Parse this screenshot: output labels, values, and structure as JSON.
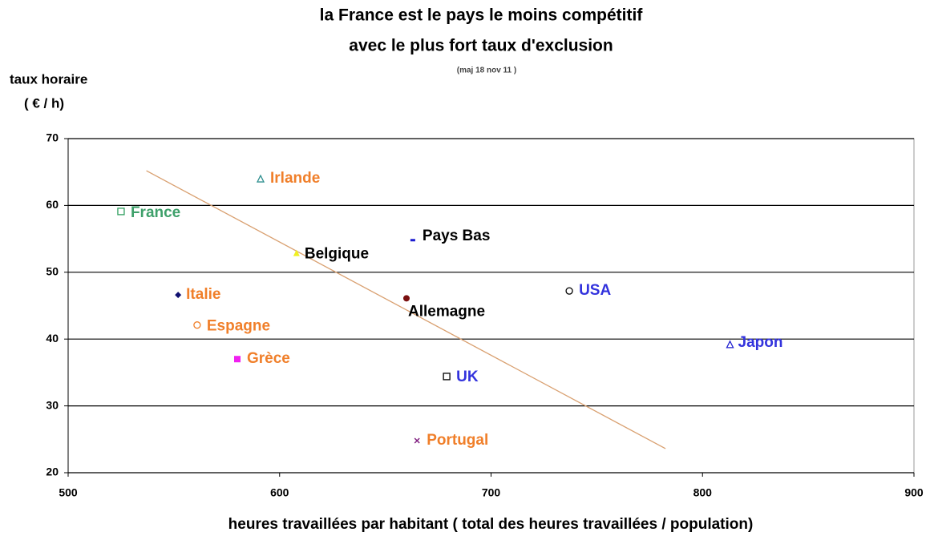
{
  "chart_data": {
    "type": "scatter",
    "title": [
      "la France est le pays le moins compétitif",
      "avec  le plus fort taux d'exclusion"
    ],
    "subtitle": "(maj 18 nov 11 )",
    "y_label": [
      "taux horaire",
      "( € / h)"
    ],
    "x_label": "heures travaillées par habitant ( total des heures travaillées / population)",
    "xlim": [
      500,
      900
    ],
    "xticks": [
      500,
      600,
      700,
      800,
      900
    ],
    "ylim": [
      20,
      70
    ],
    "yticks": [
      20,
      30,
      40,
      50,
      60,
      70
    ],
    "grid": true,
    "points": [
      {
        "name": "Irlande",
        "x": 591,
        "y": 64,
        "color": "#2f8f8f",
        "marker": "triangle-open",
        "label_color": "#f07f2a"
      },
      {
        "name": "France",
        "x": 525,
        "y": 59.1,
        "color": "#2e9e5e",
        "marker": "square-open",
        "label_color": "#3ea06a"
      },
      {
        "name": "Pays Bas",
        "x": 663,
        "y": 54.8,
        "color": "#1a1ad0",
        "marker": "dash",
        "label_color": "#000000"
      },
      {
        "name": "Belgique",
        "x": 608,
        "y": 52.9,
        "color": "#f0f020",
        "marker": "triangle",
        "label_color": "#000000"
      },
      {
        "name": "Italie",
        "x": 552,
        "y": 46.6,
        "color": "#101070",
        "marker": "diamond",
        "label_color": "#f07f2a"
      },
      {
        "name": "Allemagne",
        "x": 660,
        "y": 46.1,
        "color": "#7a1010",
        "marker": "circle",
        "label_color": "#000000"
      },
      {
        "name": "USA",
        "x": 737,
        "y": 47.2,
        "color": "#000000",
        "marker": "circle-open",
        "label_color": "#3333dd"
      },
      {
        "name": "Espagne",
        "x": 561,
        "y": 42.1,
        "color": "#f07f2a",
        "marker": "circle-open",
        "label_color": "#f07f2a"
      },
      {
        "name": "Japon",
        "x": 813,
        "y": 39.2,
        "color": "#2020d0",
        "marker": "triangle-open",
        "label_color": "#3333dd"
      },
      {
        "name": "Grèce",
        "x": 580,
        "y": 37,
        "color": "#f020f0",
        "marker": "square",
        "label_color": "#f07f2a"
      },
      {
        "name": "UK",
        "x": 679,
        "y": 34.4,
        "color": "#000000",
        "marker": "square-open",
        "label_color": "#3333dd"
      },
      {
        "name": "Portugal",
        "x": 665,
        "y": 24.8,
        "color": "#802080",
        "marker": "x",
        "label_color": "#f07f2a"
      }
    ],
    "trendline": {
      "x": [
        537,
        782.5
      ],
      "y": [
        65.2,
        23.6
      ],
      "color": "#d9a070"
    }
  }
}
